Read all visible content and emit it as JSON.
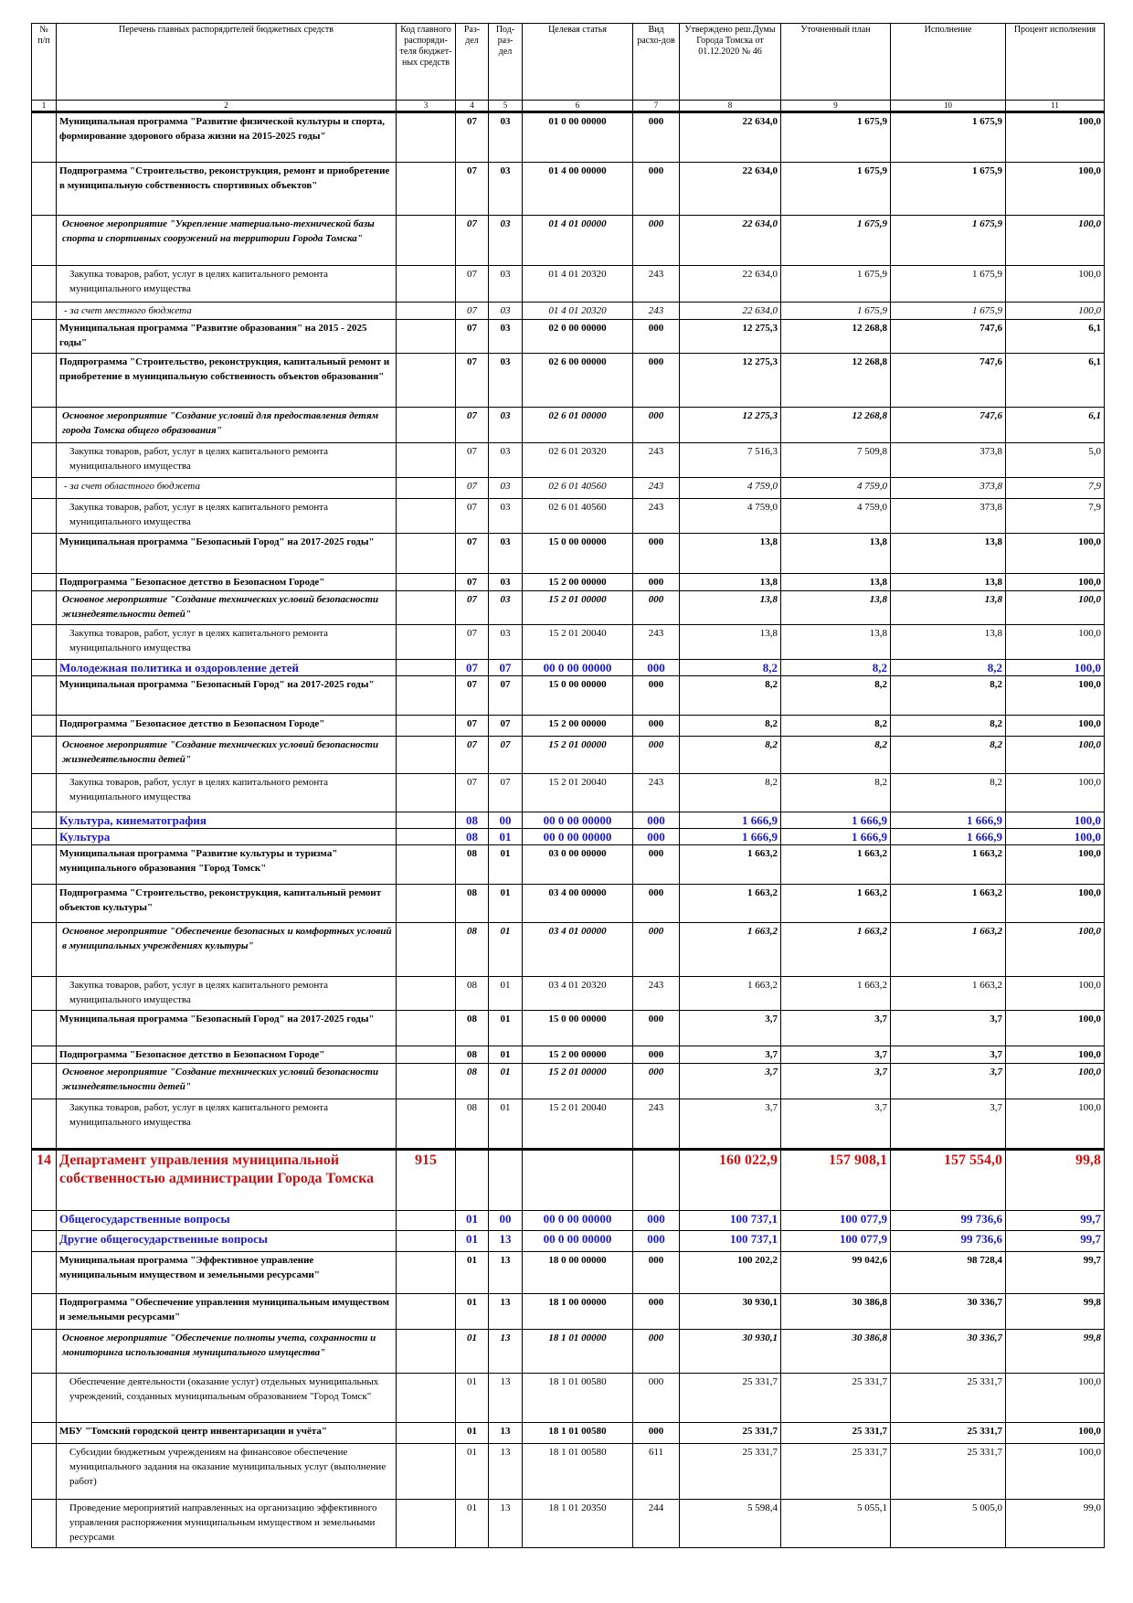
{
  "table": {
    "header": [
      "№ п/п",
      "Перечень главных распорядителей бюджетных средств",
      "Код главного распоряди-теля бюджет-ных средств",
      "Раз-дел",
      "Под-раз-дел",
      "Целевая статья",
      "Вид расхо-дов",
      "Утверждено реш.Думы Города Томска от 01.12.2020 № 46",
      "Уточненный план",
      "Исполнение",
      "Процент исполнения"
    ],
    "numbers": [
      "1",
      "2",
      "3",
      "4",
      "5",
      "6",
      "7",
      "8",
      "9",
      "10",
      "11"
    ],
    "rows": [
      [
        null,
        "Муниципальная программа \"Развитие физической культуры и спорта, формирование здорового образа жизни на 2015-2025 годы\"",
        null,
        "07",
        "03",
        "01 0 00 00000",
        "000",
        "22 634,0",
        "1 675,9",
        "1 675,9",
        "100,0"
      ],
      [
        null,
        "Подпрограмма \"Строительство, реконструкция, ремонт и приобретение в муниципальную собственность спортивных объектов\"",
        null,
        "07",
        "03",
        "01 4 00 00000",
        "000",
        "22 634,0",
        "1 675,9",
        "1 675,9",
        "100,0"
      ],
      [
        null,
        "Основное мероприятие \"Укрепление материально-технической базы спорта и спортивных сооружений на территории Города Томска\"",
        null,
        "07",
        "03",
        "01 4 01 00000",
        "000",
        "22 634,0",
        "1 675,9",
        "1 675,9",
        "100,0"
      ],
      [
        null,
        "Закупка товаров, работ, услуг в целях капитального ремонта муниципального имущества",
        null,
        "07",
        "03",
        "01 4 01 20320",
        "243",
        "22 634,0",
        "1 675,9",
        "1 675,9",
        "100,0"
      ],
      [
        null,
        "- за счет местного бюджета",
        null,
        "07",
        "03",
        "01 4 01 20320",
        "243",
        "22 634,0",
        "1 675,9",
        "1 675,9",
        "100,0"
      ],
      [
        null,
        "Муниципальная программа \"Развитие образования\" на 2015 - 2025 годы\"",
        null,
        "07",
        "03",
        "02 0 00 00000",
        "000",
        "12 275,3",
        "12 268,8",
        "747,6",
        "6,1"
      ],
      [
        null,
        "Подпрограмма \"Строительство, реконструкция, капитальный ремонт и приобретение в муниципальную собственность объектов образования\"",
        null,
        "07",
        "03",
        "02 6 00 00000",
        "000",
        "12 275,3",
        "12 268,8",
        "747,6",
        "6,1"
      ],
      [
        null,
        "Основное мероприятие \"Создание условий для предоставления детям города Томска общего образования\"",
        null,
        "07",
        "03",
        "02 6 01 00000",
        "000",
        "12 275,3",
        "12 268,8",
        "747,6",
        "6,1"
      ],
      [
        null,
        "Закупка товаров, работ, услуг в целях капитального ремонта муниципального имущества",
        null,
        "07",
        "03",
        "02 6 01 20320",
        "243",
        "7 516,3",
        "7 509,8",
        "373,8",
        "5,0"
      ],
      [
        null,
        "- за счет областного бюджета",
        null,
        "07",
        "03",
        "02 6 01 40560",
        "243",
        "4 759,0",
        "4 759,0",
        "373,8",
        "7,9"
      ],
      [
        null,
        "Закупка товаров, работ, услуг в целях капитального ремонта муниципального имущества",
        null,
        "07",
        "03",
        "02 6 01 40560",
        "243",
        "4 759,0",
        "4 759,0",
        "373,8",
        "7,9"
      ],
      [
        null,
        "Муниципальная программа \"Безопасный Город\" на 2017-2025 годы\"",
        null,
        "07",
        "03",
        "15 0 00 00000",
        "000",
        "13,8",
        "13,8",
        "13,8",
        "100,0"
      ],
      [
        null,
        "Подпрограмма \"Безопасное детство в Безопасном Городе\"",
        null,
        "07",
        "03",
        "15 2 00 00000",
        "000",
        "13,8",
        "13,8",
        "13,8",
        "100,0"
      ],
      [
        null,
        "Основное мероприятие \"Создание технических условий безопасности жизнедеятельности детей\"",
        null,
        "07",
        "03",
        "15 2 01 00000",
        "000",
        "13,8",
        "13,8",
        "13,8",
        "100,0"
      ],
      [
        null,
        "Закупка товаров, работ, услуг в целях капитального ремонта муниципального имущества",
        null,
        "07",
        "03",
        "15 2 01 20040",
        "243",
        "13,8",
        "13,8",
        "13,8",
        "100,0"
      ],
      [
        null,
        "Молодежная политика и оздоровление детей",
        null,
        "07",
        "07",
        "00 0 00 00000",
        "000",
        "8,2",
        "8,2",
        "8,2",
        "100,0"
      ],
      [
        null,
        "Муниципальная программа \"Безопасный Город\" на 2017-2025 годы\"",
        null,
        "07",
        "07",
        "15 0 00 00000",
        "000",
        "8,2",
        "8,2",
        "8,2",
        "100,0"
      ],
      [
        null,
        "Подпрограмма \"Безопасное детство в Безопасном Городе\"",
        null,
        "07",
        "07",
        "15 2 00 00000",
        "000",
        "8,2",
        "8,2",
        "8,2",
        "100,0"
      ],
      [
        null,
        "Основное мероприятие \"Создание технических условий безопасности жизнедеятельности детей\"",
        null,
        "07",
        "07",
        "15 2 01 00000",
        "000",
        "8,2",
        "8,2",
        "8,2",
        "100,0"
      ],
      [
        null,
        "Закупка товаров, работ, услуг в целях капитального ремонта муниципального имущества",
        null,
        "07",
        "07",
        "15 2 01 20040",
        "243",
        "8,2",
        "8,2",
        "8,2",
        "100,0"
      ],
      [
        null,
        "Культура, кинематография",
        null,
        "08",
        "00",
        "00 0 00 00000",
        "000",
        "1 666,9",
        "1 666,9",
        "1 666,9",
        "100,0"
      ],
      [
        null,
        "Культура",
        null,
        "08",
        "01",
        "00 0 00 00000",
        "000",
        "1 666,9",
        "1 666,9",
        "1 666,9",
        "100,0"
      ],
      [
        null,
        "Муниципальная программа \"Развитие культуры и туризма\" муниципального образования \"Город Томск\"",
        null,
        "08",
        "01",
        "03 0 00 00000",
        "000",
        "1 663,2",
        "1 663,2",
        "1 663,2",
        "100,0"
      ],
      [
        null,
        "Подпрограмма \"Строительство, реконструкция, капитальный ремонт объектов культуры\"",
        null,
        "08",
        "01",
        "03 4 00 00000",
        "000",
        "1 663,2",
        "1 663,2",
        "1 663,2",
        "100,0"
      ],
      [
        null,
        "Основное мероприятие \"Обеспечение безопасных и комфортных условий в муниципальных учреждениях культуры\"",
        null,
        "08",
        "01",
        "03 4 01 00000",
        "000",
        "1 663,2",
        "1 663,2",
        "1 663,2",
        "100,0"
      ],
      [
        null,
        "Закупка товаров, работ, услуг в целях капитального ремонта муниципального имущества",
        null,
        "08",
        "01",
        "03 4 01 20320",
        "243",
        "1 663,2",
        "1 663,2",
        "1 663,2",
        "100,0"
      ],
      [
        null,
        "Муниципальная программа \"Безопасный Город\" на 2017-2025 годы\"",
        null,
        "08",
        "01",
        "15 0 00 00000",
        "000",
        "3,7",
        "3,7",
        "3,7",
        "100,0"
      ],
      [
        null,
        "Подпрограмма \"Безопасное детство в Безопасном Городе\"",
        null,
        "08",
        "01",
        "15 2 00 00000",
        "000",
        "3,7",
        "3,7",
        "3,7",
        "100,0"
      ],
      [
        null,
        "Основное мероприятие \"Создание технических условий безопасности жизнедеятельности детей\"",
        null,
        "08",
        "01",
        "15 2 01 00000",
        "000",
        "3,7",
        "3,7",
        "3,7",
        "100,0"
      ],
      [
        null,
        "Закупка товаров, работ, услуг в целях капитального ремонта муниципального имущества",
        null,
        "08",
        "01",
        "15 2 01 20040",
        "243",
        "3,7",
        "3,7",
        "3,7",
        "100,0"
      ],
      [
        "14",
        "Департамент управления муниципальной собственностью администрации Города Томска",
        "915",
        null,
        null,
        null,
        null,
        "160 022,9",
        "157 908,1",
        "157 554,0",
        "99,8"
      ],
      [
        null,
        "Общегосударственные вопросы",
        null,
        "01",
        "00",
        "00 0 00 00000",
        "000",
        "100 737,1",
        "100 077,9",
        "99 736,6",
        "99,7"
      ],
      [
        null,
        "Другие общегосударственные вопросы",
        null,
        "01",
        "13",
        "00 0 00 00000",
        "000",
        "100 737,1",
        "100 077,9",
        "99 736,6",
        "99,7"
      ],
      [
        null,
        "Муниципальная программа \"Эффективное управление муниципальным имуществом и земельными ресурсами\"",
        null,
        "01",
        "13",
        "18 0 00 00000",
        "000",
        "100 202,2",
        "99 042,6",
        "98 728,4",
        "99,7"
      ],
      [
        null,
        "Подпрограмма \"Обеспечение управления муниципальным имуществом и земельными ресурсами\"",
        null,
        "01",
        "13",
        "18 1 00 00000",
        "000",
        "30 930,1",
        "30 386,8",
        "30 336,7",
        "99,8"
      ],
      [
        null,
        "Основное мероприятие \"Обеспечение полноты учета, сохранности и мониторинга использования муниципального имущества\"",
        null,
        "01",
        "13",
        "18 1 01 00000",
        "000",
        "30 930,1",
        "30 386,8",
        "30 336,7",
        "99,8"
      ],
      [
        null,
        "Обеспечение деятельности (оказание услуг) отдельных муниципальных учреждений, созданных муниципальным образованием \"Город Томск\"",
        null,
        "01",
        "13",
        "18 1 01 00580",
        "000",
        "25 331,7",
        "25 331,7",
        "25 331,7",
        "100,0"
      ],
      [
        null,
        "МБУ \"Томский городской центр инвентаризации и учёта\"",
        null,
        "01",
        "13",
        "18 1 01 00580",
        "000",
        "25 331,7",
        "25 331,7",
        "25 331,7",
        "100,0"
      ],
      [
        null,
        "Субсидии бюджетным учреждениям на финансовое обеспечение муниципального задания на оказание муниципальных услуг (выполнение работ)",
        null,
        "01",
        "13",
        "18 1 01 00580",
        "611",
        "25 331,7",
        "25 331,7",
        "25 331,7",
        "100,0"
      ],
      [
        null,
        "Проведение мероприятий направленных на организацию эффективного управления распоряжения муниципальным имуществом и земельными ресурсами",
        null,
        "01",
        "13",
        "18 1 01 20350",
        "244",
        "5 598,4",
        "5 055,1",
        "5 005,0",
        "99,0"
      ]
    ]
  }
}
